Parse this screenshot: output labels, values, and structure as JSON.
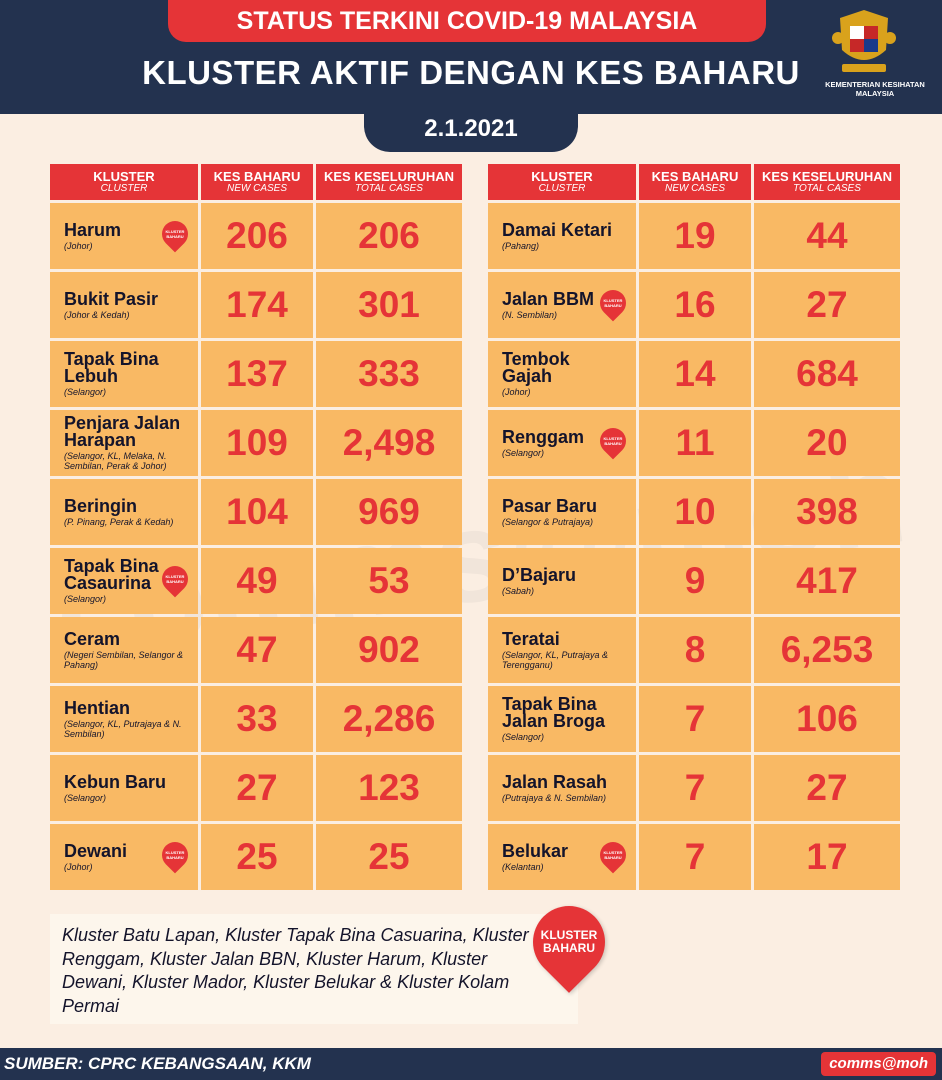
{
  "header": {
    "banner": "STATUS TERKINI COVID-19 MALAYSIA",
    "title": "KLUSTER AKTIF DENGAN KES BAHARU",
    "date": "2.1.2021",
    "ministry": "KEMENTERIAN KESIHATAN MALAYSIA"
  },
  "columns": {
    "cluster_ms": "KLUSTER",
    "cluster_en": "CLUSTER",
    "new_ms": "KES BAHARU",
    "new_en": "NEW CASES",
    "total_ms": "KES KESELURUHAN",
    "total_en": "TOTAL CASES"
  },
  "new_pin_label": "KLUSTER BAHARU",
  "left_rows": [
    {
      "name": "Harum",
      "location": "(Johor)",
      "new_cases": "206",
      "total_cases": "206",
      "is_new": true
    },
    {
      "name": "Bukit Pasir",
      "location": "(Johor & Kedah)",
      "new_cases": "174",
      "total_cases": "301",
      "is_new": false
    },
    {
      "name": "Tapak Bina Lebuh",
      "location": "(Selangor)",
      "new_cases": "137",
      "total_cases": "333",
      "is_new": false
    },
    {
      "name": "Penjara Jalan Harapan",
      "location": "(Selangor, KL, Melaka, N. Sembilan, Perak & Johor)",
      "new_cases": "109",
      "total_cases": "2,498",
      "is_new": false
    },
    {
      "name": "Beringin",
      "location": "(P. Pinang, Perak & Kedah)",
      "new_cases": "104",
      "total_cases": "969",
      "is_new": false
    },
    {
      "name": "Tapak Bina Casaurina",
      "location": "(Selangor)",
      "new_cases": "49",
      "total_cases": "53",
      "is_new": true
    },
    {
      "name": "Ceram",
      "location": "(Negeri Sembilan, Selangor & Pahang)",
      "new_cases": "47",
      "total_cases": "902",
      "is_new": false
    },
    {
      "name": "Hentian",
      "location": "(Selangor, KL, Putrajaya & N. Sembilan)",
      "new_cases": "33",
      "total_cases": "2,286",
      "is_new": false
    },
    {
      "name": "Kebun Baru",
      "location": "(Selangor)",
      "new_cases": "27",
      "total_cases": "123",
      "is_new": false
    },
    {
      "name": "Dewani",
      "location": "(Johor)",
      "new_cases": "25",
      "total_cases": "25",
      "is_new": true
    }
  ],
  "right_rows": [
    {
      "name": "Damai Ketari",
      "location": "(Pahang)",
      "new_cases": "19",
      "total_cases": "44",
      "is_new": false
    },
    {
      "name": "Jalan BBM",
      "location": "(N. Sembilan)",
      "new_cases": "16",
      "total_cases": "27",
      "is_new": true
    },
    {
      "name": "Tembok Gajah",
      "location": "(Johor)",
      "new_cases": "14",
      "total_cases": "684",
      "is_new": false
    },
    {
      "name": "Renggam",
      "location": "(Selangor)",
      "new_cases": "11",
      "total_cases": "20",
      "is_new": true
    },
    {
      "name": "Pasar Baru",
      "location": "(Selangor & Putrajaya)",
      "new_cases": "10",
      "total_cases": "398",
      "is_new": false
    },
    {
      "name": "D’Bajaru",
      "location": "(Sabah)",
      "new_cases": "9",
      "total_cases": "417",
      "is_new": false
    },
    {
      "name": "Teratai",
      "location": "(Selangor, KL, Putrajaya & Terengganu)",
      "new_cases": "8",
      "total_cases": "6,253",
      "is_new": false
    },
    {
      "name": "Tapak Bina Jalan Broga",
      "location": "(Selangor)",
      "new_cases": "7",
      "total_cases": "106",
      "is_new": false
    },
    {
      "name": "Jalan Rasah",
      "location": "(Putrajaya & N. Sembilan)",
      "new_cases": "7",
      "total_cases": "27",
      "is_new": false
    },
    {
      "name": "Belukar",
      "location": "(Kelantan)",
      "new_cases": "7",
      "total_cases": "17",
      "is_new": true
    }
  ],
  "note": {
    "text": "Kluster Batu Lapan, Kluster Tapak Bina Casuarina, Kluster Renggam, Kluster Jalan BBN, Kluster Harum, Kluster Dewani, Kluster Mador, Kluster Belukar & Kluster Kolam Permai",
    "badge": "KLUSTER BAHARU"
  },
  "footer": {
    "source": "SUMBER: CPRC KEBANGSAAN, KKM",
    "brand": "comms@moh"
  },
  "watermark": "comms@moh",
  "colors": {
    "navy": "#23324f",
    "red": "#e53437",
    "cell": "#f9b964",
    "background": "#fbeee2"
  }
}
